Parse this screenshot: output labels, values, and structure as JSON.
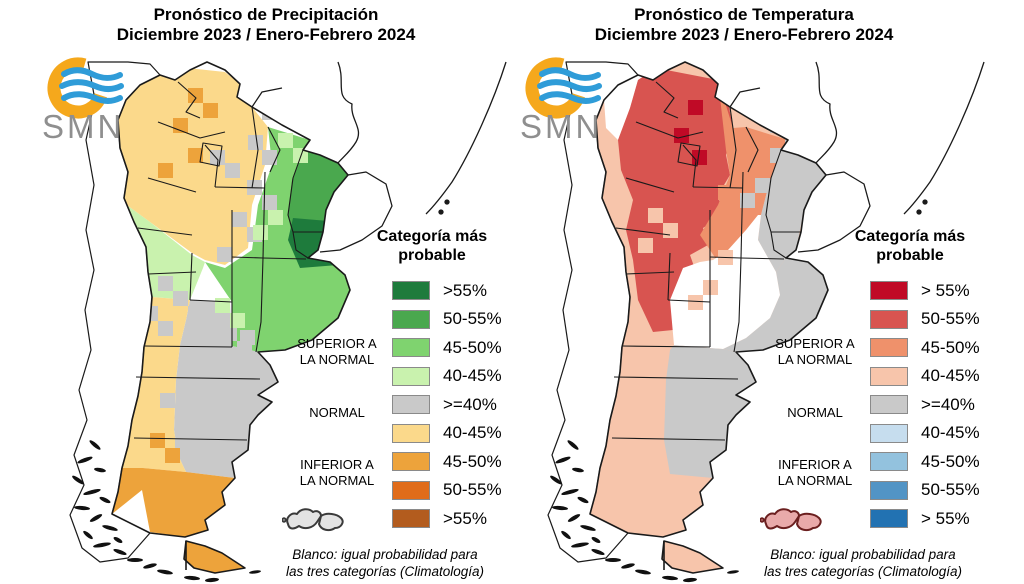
{
  "panels": [
    {
      "title_line1": "Pronóstico de Precipitación",
      "title_line2": "Diciembre 2023 / Enero-Febrero 2024",
      "logo_text": "SMN",
      "legend_heading_line1": "Categoría más",
      "legend_heading_line2": "probable",
      "label_superior_1": "SUPERIOR A",
      "label_superior_2": "LA NORMAL",
      "label_normal": "NORMAL",
      "label_inferior_1": "INFERIOR A",
      "label_inferior_2": "LA NORMAL",
      "legend_entries": [
        {
          "label": ">55%",
          "color": "#1e7b3c"
        },
        {
          "label": "50-55%",
          "color": "#4aa84e"
        },
        {
          "label": "45-50%",
          "color": "#7fd36f"
        },
        {
          "label": "40-45%",
          "color": "#c9f2ae"
        },
        {
          "label": ">=40%",
          "color": "#c9c9c9"
        },
        {
          "label": "40-45%",
          "color": "#fbd98b"
        },
        {
          "label": "45-50%",
          "color": "#eda33b"
        },
        {
          "label": "50-55%",
          "color": "#e06c1a"
        },
        {
          "label": ">55%",
          "color": "#b35c1e"
        }
      ],
      "note_line1": "Blanco: igual probabilidad para",
      "note_line2": "las tres categorías (Climatología)",
      "palette": {
        "g55": "#1e7b3c",
        "g50": "#4aa84e",
        "g45": "#7fd36f",
        "g40": "#c9f2ae",
        "n": "#c9c9c9",
        "o40": "#fbd98b",
        "o45": "#eda33b",
        "o50": "#e06c1a",
        "o55": "#b35c1e",
        "w": "#ffffff"
      },
      "cells": [
        [
          248,
          90,
          "n"
        ],
        [
          262,
          105,
          "n"
        ],
        [
          248,
          135,
          "n"
        ],
        [
          262,
          150,
          "n"
        ],
        [
          247,
          180,
          "n"
        ],
        [
          262,
          195,
          "n"
        ],
        [
          232,
          212,
          "n"
        ],
        [
          247,
          227,
          "n"
        ],
        [
          217,
          247,
          "n"
        ],
        [
          210,
          150,
          "n"
        ],
        [
          225,
          163,
          "n"
        ],
        [
          158,
          276,
          "n"
        ],
        [
          173,
          291,
          "n"
        ],
        [
          143,
          306,
          "n"
        ],
        [
          188,
          306,
          "n"
        ],
        [
          158,
          321,
          "n"
        ],
        [
          200,
          305,
          "n"
        ],
        [
          215,
          320,
          "n"
        ],
        [
          237,
          341,
          "n"
        ],
        [
          222,
          326,
          "n"
        ],
        [
          205,
          350,
          "n"
        ],
        [
          190,
          365,
          "n"
        ],
        [
          160,
          393,
          "n"
        ],
        [
          175,
          438,
          "n"
        ],
        [
          190,
          453,
          "n"
        ],
        [
          240,
          330,
          "n"
        ],
        [
          188,
          88,
          "o45"
        ],
        [
          203,
          103,
          "o45"
        ],
        [
          173,
          118,
          "o45"
        ],
        [
          188,
          148,
          "o45"
        ],
        [
          158,
          163,
          "o45"
        ],
        [
          150,
          433,
          "o45"
        ],
        [
          165,
          448,
          "o45"
        ],
        [
          155,
          492,
          "o45"
        ],
        [
          278,
          133,
          "g40"
        ],
        [
          293,
          148,
          "g40"
        ],
        [
          215,
          298,
          "g40"
        ],
        [
          230,
          313,
          "g40"
        ],
        [
          268,
          210,
          "g40"
        ],
        [
          253,
          225,
          "g40"
        ]
      ],
      "malvinas": {
        "fill": "#e3e3e3",
        "stroke": "#3a3a3a"
      }
    },
    {
      "title_line1": "Pronóstico de Temperatura",
      "title_line2": "Diciembre 2023 / Enero-Febrero 2024",
      "logo_text": "SMN",
      "legend_heading_line1": "Categoría más",
      "legend_heading_line2": "probable",
      "label_superior_1": "SUPERIOR A",
      "label_superior_2": "LA NORMAL",
      "label_normal": "NORMAL",
      "label_inferior_1": "INFERIOR A",
      "label_inferior_2": "LA NORMAL",
      "legend_entries": [
        {
          "label": "> 55%",
          "color": "#c00a26"
        },
        {
          "label": "50-55%",
          "color": "#d85450"
        },
        {
          "label": "45-50%",
          "color": "#ef916b"
        },
        {
          "label": "40-45%",
          "color": "#f7c5ab"
        },
        {
          "label": ">=40%",
          "color": "#c9c9c9"
        },
        {
          "label": "40-45%",
          "color": "#c6ddee"
        },
        {
          "label": "45-50%",
          "color": "#93c2de"
        },
        {
          "label": "50-55%",
          "color": "#5294c5"
        },
        {
          "label": "> 55%",
          "color": "#2272b2"
        }
      ],
      "note_line1": "Blanco: igual probabilidad para",
      "note_line2": "las tres categorías (Climatología)",
      "palette": {
        "r55": "#c00a26",
        "r50": "#d85450",
        "r45": "#ef916b",
        "r40": "#f7c5ab",
        "n": "#c9c9c9",
        "b40": "#c6ddee",
        "b45": "#93c2de",
        "b50": "#5294c5",
        "b55": "#2272b2",
        "w": "#ffffff"
      },
      "cells": [
        [
          210,
          100,
          "r55"
        ],
        [
          196,
          128,
          "r55"
        ],
        [
          214,
          150,
          "r55"
        ],
        [
          292,
          118,
          "n"
        ],
        [
          307,
          133,
          "n"
        ],
        [
          292,
          148,
          "n"
        ],
        [
          307,
          163,
          "n"
        ],
        [
          277,
          178,
          "n"
        ],
        [
          262,
          193,
          "n"
        ],
        [
          205,
          353,
          "n"
        ],
        [
          190,
          393,
          "n"
        ],
        [
          205,
          408,
          "n"
        ],
        [
          190,
          438,
          "n"
        ],
        [
          220,
          423,
          "n"
        ],
        [
          235,
          350,
          "n"
        ],
        [
          250,
          365,
          "n"
        ],
        [
          205,
          455,
          "n"
        ],
        [
          170,
          208,
          "r40"
        ],
        [
          185,
          223,
          "r40"
        ],
        [
          160,
          238,
          "r40"
        ],
        [
          225,
          280,
          "r40"
        ],
        [
          210,
          295,
          "r40"
        ],
        [
          240,
          250,
          "r40"
        ],
        [
          255,
          140,
          "r45"
        ],
        [
          270,
          155,
          "r45"
        ],
        [
          255,
          170,
          "r45"
        ],
        [
          240,
          185,
          "r45"
        ]
      ],
      "malvinas": {
        "fill": "#e9aaaa",
        "stroke": "#6b1f1f"
      }
    }
  ]
}
